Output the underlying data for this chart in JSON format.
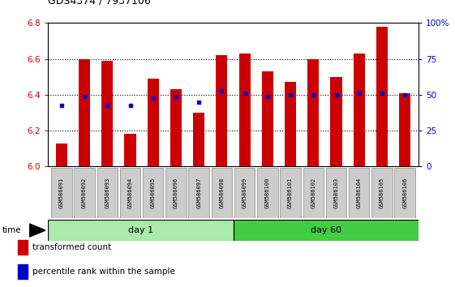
{
  "title": "GDS4374 / 7937106",
  "samples": [
    "GSM586091",
    "GSM586092",
    "GSM586093",
    "GSM586094",
    "GSM586095",
    "GSM586096",
    "GSM586097",
    "GSM586098",
    "GSM586099",
    "GSM586100",
    "GSM586101",
    "GSM586102",
    "GSM586103",
    "GSM586104",
    "GSM586105",
    "GSM586106"
  ],
  "red_values": [
    6.13,
    6.6,
    6.59,
    6.18,
    6.49,
    6.43,
    6.3,
    6.62,
    6.63,
    6.53,
    6.47,
    6.6,
    6.5,
    6.63,
    6.78,
    6.41
  ],
  "blue_values": [
    6.34,
    6.39,
    6.34,
    6.34,
    6.38,
    6.39,
    6.36,
    6.42,
    6.41,
    6.39,
    6.4,
    6.4,
    6.4,
    6.41,
    6.41,
    6.4
  ],
  "ylim_left": [
    6.0,
    6.8
  ],
  "ylim_right": [
    0,
    100
  ],
  "day1_count": 8,
  "day60_count": 8,
  "bar_color": "#cc0000",
  "dot_color": "#0000cc",
  "bar_bottom": 6.0,
  "background_color": "#ffffff",
  "axis_left_color": "#cc0000",
  "axis_right_color": "#0000cc",
  "day1_label": "day 1",
  "day60_label": "day 60",
  "time_label": "time",
  "legend_red": "transformed count",
  "legend_blue": "percentile rank within the sample",
  "bar_width": 0.5,
  "dotted_grid_values": [
    6.2,
    6.4,
    6.6
  ],
  "right_tick_values": [
    0,
    25,
    50,
    75,
    100
  ],
  "right_tick_labels": [
    "0",
    "25",
    "50",
    "75",
    "100%"
  ],
  "day1_color": "#aaeaaa",
  "day60_color": "#44cc44"
}
